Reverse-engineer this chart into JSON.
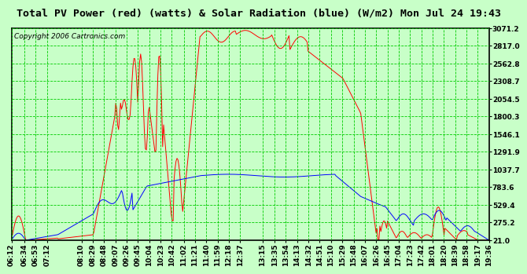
{
  "title": "Total PV Power (red) (watts) & Solar Radiation (blue) (W/m2) Mon Jul 24 19:43",
  "copyright_text": "Copyright 2006 Cartronics.com",
  "background_color": "#c8ffc8",
  "plot_bg_color": "#c8ffc8",
  "grid_color": "#00cc00",
  "border_color": "#000000",
  "ytick_labels": [
    "21.0",
    "275.2",
    "529.4",
    "783.6",
    "1037.7",
    "1291.9",
    "1546.1",
    "1800.3",
    "2054.5",
    "2308.7",
    "2562.8",
    "2817.0",
    "3071.2"
  ],
  "ytick_values": [
    21.0,
    275.2,
    529.4,
    783.6,
    1037.7,
    1291.9,
    1546.1,
    1800.3,
    2054.5,
    2308.7,
    2562.8,
    2817.0,
    3071.2
  ],
  "ymin": 21.0,
  "ymax": 3071.2,
  "xtick_labels": [
    "06:12",
    "06:34",
    "06:53",
    "07:12",
    "08:10",
    "08:29",
    "08:48",
    "09:07",
    "09:26",
    "09:45",
    "10:04",
    "10:23",
    "10:42",
    "11:02",
    "11:21",
    "11:40",
    "11:59",
    "12:18",
    "12:37",
    "13:15",
    "13:35",
    "13:54",
    "14:13",
    "14:32",
    "14:51",
    "15:10",
    "15:29",
    "15:48",
    "16:07",
    "16:26",
    "16:45",
    "17:04",
    "17:23",
    "17:42",
    "18:01",
    "18:20",
    "18:39",
    "18:58",
    "19:17",
    "19:36"
  ],
  "line_red_color": "#ff0000",
  "line_blue_color": "#0000ff",
  "title_fontsize": 9.5,
  "tick_fontsize": 6.5,
  "copyright_fontsize": 6.5
}
